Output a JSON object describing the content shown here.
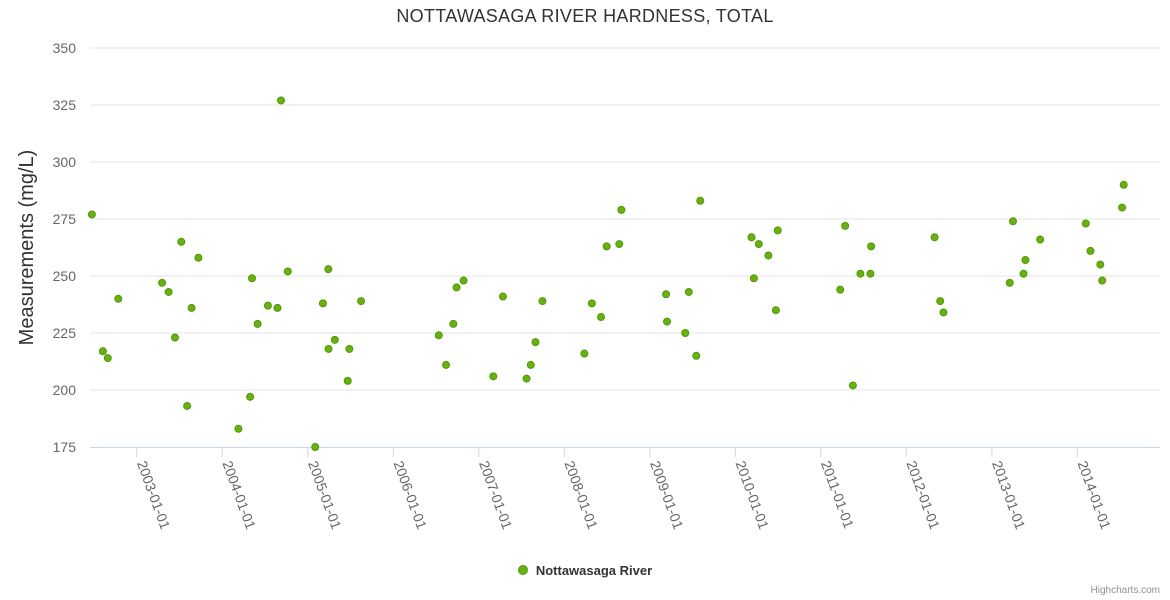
{
  "title": "NOTTAWASAGA RIVER HARDNESS, TOTAL",
  "credits": "Highcharts.com",
  "colors": {
    "marker_fill": "#6ab011",
    "marker_stroke": "#4e9a06",
    "grid": "#e6e6e6",
    "text": "#333333"
  },
  "chart_data": {
    "type": "scatter",
    "title": "NOTTAWASAGA RIVER HARDNESS, TOTAL",
    "xlabel": "",
    "ylabel": "Measurements (mg/L)",
    "ylim": [
      175,
      350
    ],
    "yticks": [
      175,
      200,
      225,
      250,
      275,
      300,
      325,
      350
    ],
    "xlim": [
      "2002-06-15",
      "2014-12-20"
    ],
    "xticks": [
      "2003-01-01",
      "2004-01-01",
      "2005-01-01",
      "2006-01-01",
      "2007-01-01",
      "2008-01-01",
      "2009-01-01",
      "2010-01-01",
      "2011-01-01",
      "2012-01-01",
      "2013-01-01",
      "2014-01-01"
    ],
    "grid": true,
    "legend_position": "bottom-center",
    "series": [
      {
        "name": "Nottawasaga River",
        "points": [
          [
            "2002-06-23",
            277
          ],
          [
            "2002-08-09",
            217
          ],
          [
            "2002-08-30",
            214
          ],
          [
            "2002-10-14",
            240
          ],
          [
            "2003-04-19",
            247
          ],
          [
            "2003-05-17",
            243
          ],
          [
            "2003-06-13",
            223
          ],
          [
            "2003-07-10",
            265
          ],
          [
            "2003-08-04",
            193
          ],
          [
            "2003-08-23",
            236
          ],
          [
            "2003-09-21",
            258
          ],
          [
            "2004-03-10",
            183
          ],
          [
            "2004-04-29",
            197
          ],
          [
            "2004-05-07",
            249
          ],
          [
            "2004-05-31",
            229
          ],
          [
            "2004-07-14",
            237
          ],
          [
            "2004-08-24",
            236
          ],
          [
            "2004-09-08",
            327
          ],
          [
            "2004-10-07",
            252
          ],
          [
            "2005-02-01",
            175
          ],
          [
            "2005-03-06",
            238
          ],
          [
            "2005-03-30",
            218
          ],
          [
            "2005-03-29",
            253
          ],
          [
            "2005-04-26",
            222
          ],
          [
            "2005-06-20",
            204
          ],
          [
            "2005-06-27",
            218
          ],
          [
            "2005-08-16",
            239
          ],
          [
            "2006-07-14",
            224
          ],
          [
            "2006-08-14",
            211
          ],
          [
            "2006-09-14",
            229
          ],
          [
            "2006-09-28",
            245
          ],
          [
            "2006-10-28",
            248
          ],
          [
            "2007-03-04",
            206
          ],
          [
            "2007-04-14",
            241
          ],
          [
            "2007-07-24",
            205
          ],
          [
            "2007-08-11",
            211
          ],
          [
            "2007-08-31",
            221
          ],
          [
            "2007-09-30",
            239
          ],
          [
            "2008-03-27",
            216
          ],
          [
            "2008-04-28",
            238
          ],
          [
            "2008-06-06",
            232
          ],
          [
            "2008-06-30",
            263
          ],
          [
            "2008-08-23",
            264
          ],
          [
            "2008-09-01",
            279
          ],
          [
            "2009-03-11",
            242
          ],
          [
            "2009-03-15",
            230
          ],
          [
            "2009-06-01",
            225
          ],
          [
            "2009-06-16",
            243
          ],
          [
            "2009-07-18",
            215
          ],
          [
            "2009-08-04",
            283
          ],
          [
            "2010-03-11",
            267
          ],
          [
            "2010-03-21",
            249
          ],
          [
            "2010-04-11",
            264
          ],
          [
            "2010-05-22",
            259
          ],
          [
            "2010-06-23",
            235
          ],
          [
            "2010-07-01",
            270
          ],
          [
            "2011-03-25",
            244
          ],
          [
            "2011-04-15",
            272
          ],
          [
            "2011-05-18",
            202
          ],
          [
            "2011-06-19",
            251
          ],
          [
            "2011-08-01",
            251
          ],
          [
            "2011-08-04",
            263
          ],
          [
            "2012-05-01",
            267
          ],
          [
            "2012-05-25",
            239
          ],
          [
            "2012-06-08",
            234
          ],
          [
            "2013-03-18",
            247
          ],
          [
            "2013-04-01",
            274
          ],
          [
            "2013-05-16",
            251
          ],
          [
            "2013-05-24",
            257
          ],
          [
            "2013-07-26",
            266
          ],
          [
            "2014-02-06",
            273
          ],
          [
            "2014-02-26",
            261
          ],
          [
            "2014-04-09",
            255
          ],
          [
            "2014-04-17",
            248
          ],
          [
            "2014-07-11",
            280
          ],
          [
            "2014-07-18",
            290
          ]
        ]
      }
    ]
  }
}
